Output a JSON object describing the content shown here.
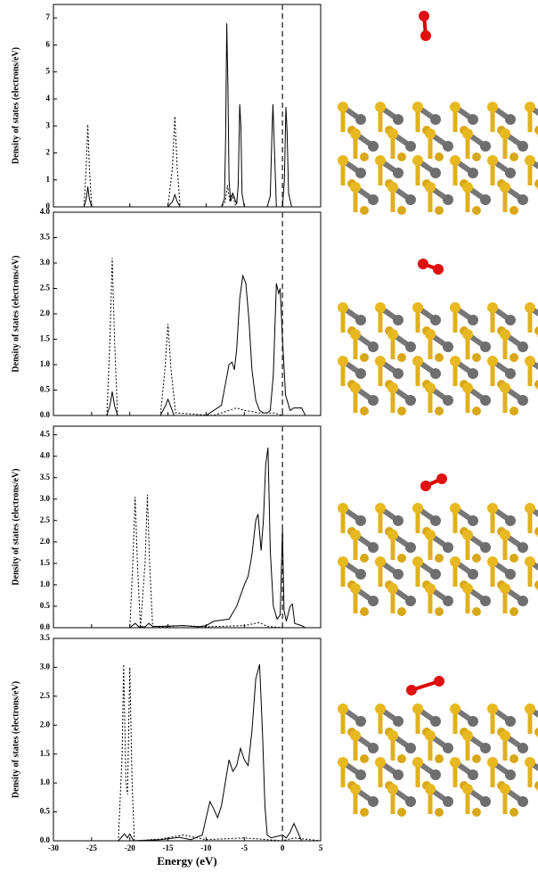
{
  "chart_data": [
    {
      "type": "line",
      "ylabel": "Density of states (electrons/eV)",
      "xlim": [
        -30,
        5
      ],
      "xticks": [
        -30,
        -25,
        -20,
        -15,
        -10,
        -5,
        0,
        5
      ],
      "ylim": [
        0,
        7.5
      ],
      "yticks": [
        0,
        1,
        2,
        3,
        4,
        5,
        6,
        7
      ],
      "vline": 0,
      "series": [
        {
          "color": "#000000",
          "dash": "solid",
          "x": [
            -30,
            -26,
            -25.7,
            -25.5,
            -25.3,
            -25,
            -15,
            -14.4,
            -14.1,
            -13.8,
            -13.4,
            -8,
            -7.6,
            -7.45,
            -7.3,
            -7.15,
            -7.0,
            -6.8,
            -6.5,
            -6.0,
            -5.8,
            -5.6,
            -5.45,
            -5.3,
            -5.0,
            -2,
            -1.6,
            -1.4,
            -1.25,
            -1.1,
            -0.8,
            0,
            0.25,
            0.45,
            0.6,
            0.8,
            1.2,
            5
          ],
          "values": [
            0,
            0,
            0.3,
            0.75,
            0.3,
            0,
            0,
            0.2,
            0.45,
            0.2,
            0,
            0,
            0.3,
            2.5,
            6.8,
            4.5,
            1.0,
            0.2,
            0.5,
            0.1,
            0.8,
            3.8,
            3.0,
            0.5,
            0,
            0,
            0.4,
            2.5,
            3.8,
            2.5,
            0,
            0,
            1.0,
            3.7,
            2.8,
            0.5,
            0,
            0
          ]
        },
        {
          "color": "#000000",
          "dash": "dashed",
          "x": [
            -30,
            -26,
            -25.7,
            -25.5,
            -25.3,
            -25,
            -15,
            -14.4,
            -14.1,
            -13.8,
            -13.4,
            -8,
            -7.5,
            -7.2,
            -6.9,
            -6.6,
            -6.4,
            -6.1,
            -5.8,
            5
          ],
          "values": [
            0,
            0,
            1.5,
            3.05,
            1.5,
            0,
            0,
            1.5,
            3.35,
            1.5,
            0,
            0,
            0.2,
            0.8,
            0.2,
            0.5,
            0.3,
            0,
            0,
            0
          ]
        }
      ]
    },
    {
      "type": "line",
      "ylabel": "Density of states (electrons/eV)",
      "xlim": [
        -30,
        5
      ],
      "xticks": [
        -30,
        -25,
        -20,
        -15,
        -10,
        -5,
        0,
        5
      ],
      "ylim": [
        0,
        4
      ],
      "yticks": [
        {
          "value": 0,
          "label": "0.0"
        },
        0.5,
        {
          "value": 1,
          "label": "1.0"
        },
        1.5,
        {
          "value": 2,
          "label": "2.0"
        },
        2.5,
        {
          "value": 3,
          "label": "3.0"
        },
        3.5,
        {
          "value": 4,
          "label": "4.0"
        }
      ],
      "vline": 0,
      "series": [
        {
          "color": "#000000",
          "dash": "solid",
          "x": [
            -30,
            -23,
            -22.6,
            -22.3,
            -22.0,
            -21.6,
            -16,
            -15.3,
            -15.0,
            -14.7,
            -14.2,
            -10,
            -9,
            -8,
            -7.5,
            -7.0,
            -6.6,
            -6.3,
            -6.0,
            -5.6,
            -5.2,
            -4.8,
            -4.4,
            -4.0,
            -3.5,
            -3.0,
            -2.5,
            -2.0,
            -1.6,
            -1.2,
            -0.8,
            -0.5,
            -0.3,
            0,
            0.4,
            1,
            1.5,
            2.5,
            3,
            5
          ],
          "values": [
            0,
            0,
            0.2,
            0.47,
            0.2,
            0,
            0,
            0.2,
            0.32,
            0.2,
            0,
            0,
            0.1,
            0.2,
            0.6,
            1.0,
            1.05,
            0.9,
            1.3,
            2.3,
            2.75,
            2.6,
            1.9,
            0.9,
            0.3,
            0.1,
            0.05,
            0.05,
            0.1,
            0.8,
            2.6,
            2.4,
            2.5,
            1.5,
            0.4,
            0.1,
            0.15,
            0.15,
            0,
            0
          ]
        },
        {
          "color": "#000000",
          "dash": "dashed",
          "x": [
            -30,
            -23,
            -22.6,
            -22.3,
            -22.0,
            -21.6,
            -16,
            -15.4,
            -15.0,
            -14.6,
            -14.0,
            -9,
            -7,
            -6,
            -5,
            -3,
            -1,
            0,
            5
          ],
          "values": [
            0,
            0,
            1.5,
            3.1,
            1.5,
            0,
            0,
            0.9,
            1.8,
            0.9,
            0.05,
            0,
            0.1,
            0.15,
            0.1,
            0.05,
            0.05,
            0,
            0
          ]
        }
      ]
    },
    {
      "type": "line",
      "ylabel": "Density of states (electrons/eV)",
      "xlim": [
        -30,
        5
      ],
      "xticks": [
        -30,
        -25,
        -20,
        -15,
        -10,
        -5,
        0,
        5
      ],
      "ylim": [
        0,
        4.7
      ],
      "yticks": [
        {
          "value": 0,
          "label": "0.0"
        },
        0.5,
        {
          "value": 1,
          "label": "1.0"
        },
        1.5,
        {
          "value": 2,
          "label": "2.0"
        },
        2.5,
        {
          "value": 3,
          "label": "3.0"
        },
        3.5,
        {
          "value": 4,
          "label": "4.0"
        },
        4.5
      ],
      "vline": 0,
      "series": [
        {
          "color": "#000000",
          "dash": "solid",
          "x": [
            -30,
            -20,
            -19.3,
            -18.8,
            -18,
            -17.5,
            -17,
            -16,
            -13,
            -11,
            -10,
            -9,
            -7,
            -6,
            -5,
            -4.5,
            -4.0,
            -3.5,
            -3.2,
            -2.8,
            -2.5,
            -2.2,
            -1.9,
            -1.6,
            -1.2,
            -0.7,
            -0.3,
            0,
            0.2,
            0.5,
            1.0,
            1.3,
            1.6,
            2.5,
            3,
            5
          ],
          "values": [
            0,
            0,
            0.1,
            0.02,
            0.02,
            0.1,
            0.03,
            0.03,
            0.05,
            0.02,
            0.05,
            0.15,
            0.2,
            0.5,
            1.0,
            1.2,
            1.7,
            2.5,
            2.65,
            1.8,
            2.5,
            3.8,
            4.2,
            1.8,
            0.5,
            0.2,
            0.3,
            2.3,
            0.4,
            0.15,
            0.5,
            0.55,
            0.1,
            0.05,
            0,
            0
          ]
        },
        {
          "color": "#000000",
          "dash": "dashed",
          "x": [
            -30,
            -20,
            -19.6,
            -19.3,
            -19.0,
            -18.6,
            -18.0,
            -17.7,
            -17.4,
            -17,
            -13,
            -10,
            -5,
            -3,
            -2,
            0,
            5
          ],
          "values": [
            0,
            0,
            1.5,
            3.05,
            1.5,
            0,
            1.5,
            3.1,
            1.5,
            0,
            0.05,
            0.02,
            0.05,
            0.12,
            0.03,
            0,
            0
          ]
        }
      ]
    },
    {
      "type": "line",
      "ylabel": "Density of states (electrons/eV)",
      "xlabel": "Energy (eV)",
      "xtick_labels": true,
      "xlim": [
        -30,
        5
      ],
      "xticks": [
        -30,
        -25,
        -20,
        -15,
        -10,
        -5,
        0,
        5
      ],
      "ylim": [
        0,
        3.5
      ],
      "yticks": [
        {
          "value": 0,
          "label": "0.0"
        },
        0.5,
        {
          "value": 1,
          "label": "1.0"
        },
        1.5,
        {
          "value": 2,
          "label": "2.0"
        },
        2.5,
        {
          "value": 3,
          "label": "3.0"
        },
        3.5
      ],
      "vline": 0,
      "series": [
        {
          "color": "#000000",
          "dash": "solid",
          "x": [
            -30,
            -21.5,
            -20.7,
            -20.3,
            -20.0,
            -19.5,
            -16,
            -13.5,
            -12,
            -10.5,
            -10.0,
            -9.5,
            -9.0,
            -8.5,
            -8.0,
            -7.5,
            -7.0,
            -6.5,
            -6.0,
            -5.5,
            -5.0,
            -4.5,
            -4.0,
            -3.5,
            -3.0,
            -2.6,
            -2.3,
            -2.0,
            -1.5,
            0,
            0.5,
            1.0,
            1.5,
            2.0,
            2.5,
            5
          ],
          "values": [
            0,
            0,
            0.12,
            0.05,
            0.12,
            0,
            0.02,
            0.06,
            0.02,
            0.1,
            0.4,
            0.68,
            0.55,
            0.4,
            0.6,
            1.0,
            1.4,
            1.2,
            1.3,
            1.6,
            1.4,
            1.3,
            1.9,
            2.8,
            3.05,
            1.8,
            0.6,
            0.1,
            0.05,
            0.1,
            0.05,
            0.15,
            0.3,
            0.15,
            0,
            0
          ]
        },
        {
          "color": "#000000",
          "dash": "dashed",
          "x": [
            -30,
            -21.5,
            -21.0,
            -20.8,
            -20.5,
            -20.3,
            -20.0,
            -19.7,
            -19.4,
            -16,
            -13,
            -10,
            -5,
            -3,
            0,
            1.5,
            5
          ],
          "values": [
            0,
            0,
            1.5,
            3.05,
            1.0,
            0.8,
            3.0,
            1.0,
            0,
            0.03,
            0.1,
            0.02,
            0.05,
            0.03,
            0,
            0.05,
            0
          ]
        }
      ]
    }
  ]
}
